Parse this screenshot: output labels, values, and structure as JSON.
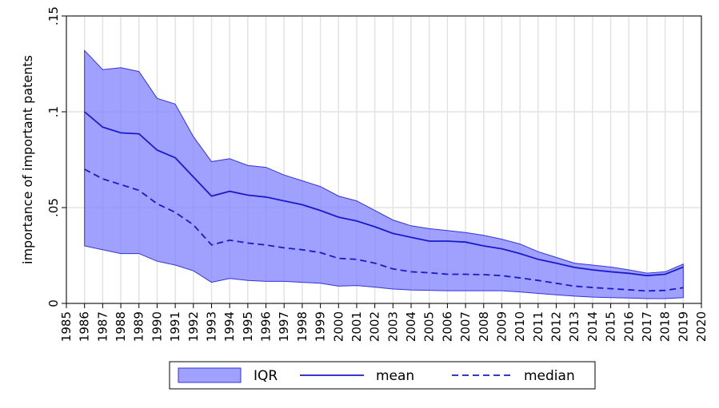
{
  "chart_data": {
    "type": "area",
    "title": "",
    "xlabel": "",
    "ylabel": "importance of important patents",
    "xlim": [
      1985,
      2020
    ],
    "ylim": [
      0,
      0.15
    ],
    "x_ticks": [
      "1985",
      "1986",
      "1987",
      "1988",
      "1989",
      "1990",
      "1991",
      "1992",
      "1993",
      "1994",
      "1995",
      "1996",
      "1997",
      "1998",
      "1999",
      "2000",
      "2001",
      "2002",
      "2003",
      "2004",
      "2005",
      "2006",
      "2007",
      "2008",
      "2009",
      "2010",
      "2011",
      "2012",
      "2013",
      "2014",
      "2015",
      "2016",
      "2017",
      "2018",
      "2019",
      "2020"
    ],
    "y_ticks": [
      {
        "value": 0,
        "label": "0"
      },
      {
        "value": 0.05,
        "label": ".05"
      },
      {
        "value": 0.1,
        "label": ".1"
      },
      {
        "value": 0.15,
        "label": ".15"
      }
    ],
    "grid": true,
    "legend_position": "bottom",
    "x": [
      1986,
      1987,
      1988,
      1989,
      1990,
      1991,
      1992,
      1993,
      1994,
      1995,
      1996,
      1997,
      1998,
      1999,
      2000,
      2001,
      2002,
      2003,
      2004,
      2005,
      2006,
      2007,
      2008,
      2009,
      2010,
      2011,
      2012,
      2013,
      2014,
      2015,
      2016,
      2017,
      2018,
      2019
    ],
    "series": [
      {
        "name": "IQR",
        "kind": "band",
        "color": "#8080ff",
        "edge_color": "#3333dd",
        "lower": [
          0.03,
          0.028,
          0.026,
          0.026,
          0.022,
          0.02,
          0.017,
          0.011,
          0.013,
          0.012,
          0.0115,
          0.0115,
          0.011,
          0.0105,
          0.009,
          0.0093,
          0.0085,
          0.0075,
          0.007,
          0.0068,
          0.0066,
          0.0066,
          0.0066,
          0.0066,
          0.006,
          0.0052,
          0.0045,
          0.0038,
          0.0033,
          0.003,
          0.0028,
          0.0025,
          0.0025,
          0.003
        ],
        "upper": [
          0.132,
          0.122,
          0.123,
          0.121,
          0.107,
          0.104,
          0.087,
          0.074,
          0.0755,
          0.072,
          0.071,
          0.067,
          0.064,
          0.061,
          0.056,
          0.0535,
          0.0485,
          0.0435,
          0.0405,
          0.039,
          0.038,
          0.037,
          0.0355,
          0.0335,
          0.031,
          0.027,
          0.024,
          0.021,
          0.02,
          0.019,
          0.0175,
          0.0158,
          0.0165,
          0.0205
        ]
      },
      {
        "name": "mean",
        "kind": "line",
        "color": "#1a1acc",
        "dash": "solid",
        "values": [
          0.1,
          0.092,
          0.089,
          0.0885,
          0.08,
          0.076,
          0.066,
          0.056,
          0.0585,
          0.0565,
          0.0555,
          0.0535,
          0.0515,
          0.0485,
          0.045,
          0.043,
          0.04,
          0.0365,
          0.0345,
          0.0325,
          0.0325,
          0.032,
          0.03,
          0.0285,
          0.026,
          0.023,
          0.021,
          0.0188,
          0.0175,
          0.0165,
          0.0157,
          0.0145,
          0.0152,
          0.019
        ]
      },
      {
        "name": "median",
        "kind": "line",
        "color": "#1a1acc",
        "dash": "dashed",
        "values": [
          0.07,
          0.065,
          0.062,
          0.059,
          0.052,
          0.0475,
          0.041,
          0.0305,
          0.033,
          0.0315,
          0.0305,
          0.029,
          0.028,
          0.0265,
          0.0235,
          0.023,
          0.021,
          0.018,
          0.0165,
          0.016,
          0.0152,
          0.0152,
          0.015,
          0.0145,
          0.0133,
          0.012,
          0.0105,
          0.009,
          0.0083,
          0.0077,
          0.0071,
          0.0065,
          0.0068,
          0.0082
        ]
      }
    ]
  }
}
